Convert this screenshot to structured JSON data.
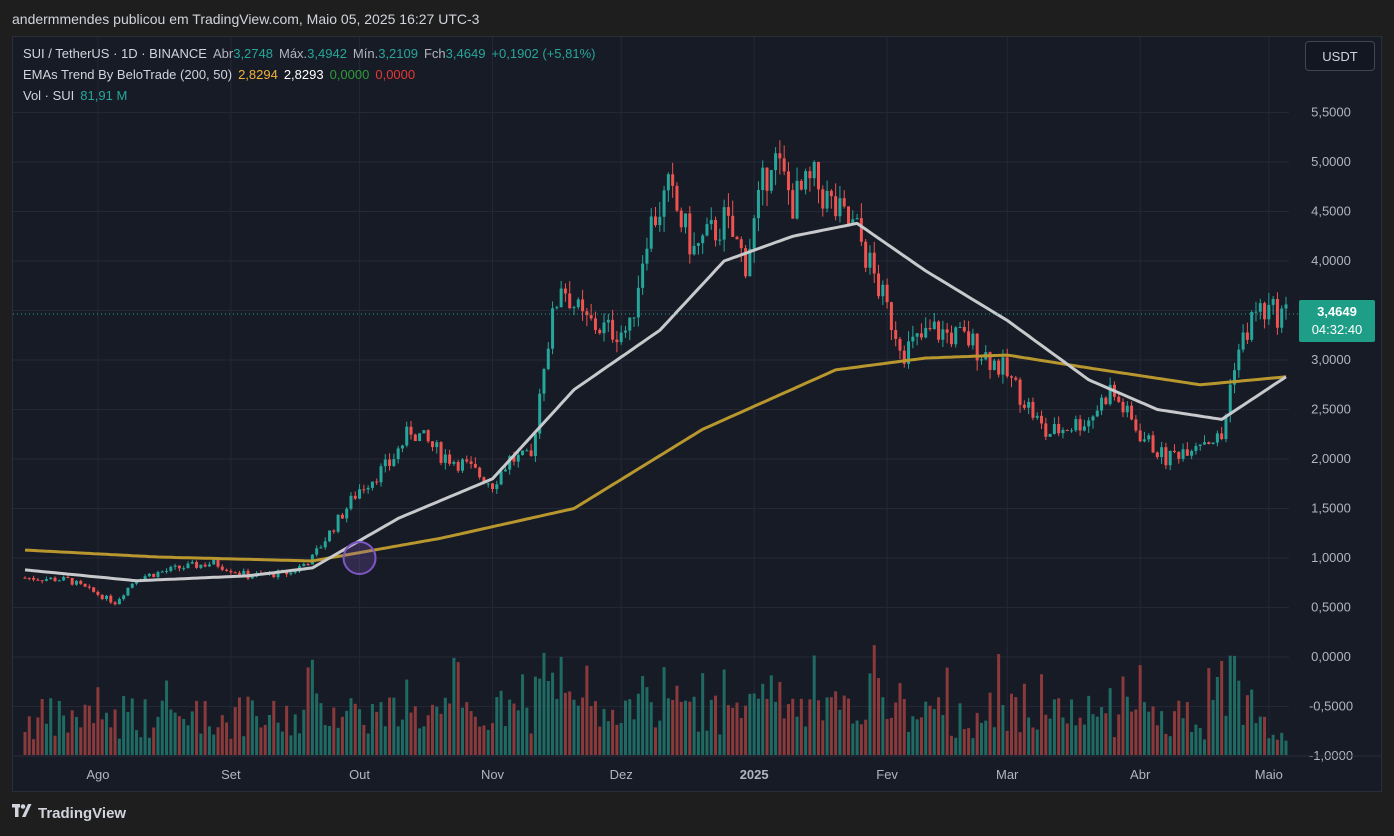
{
  "caption": "andermmendes publicou em TradingView.com, Maio 05, 2025 16:27 UTC-3",
  "legend": {
    "symbol": "SUI / TetherUS · 1D · BINANCE",
    "open_label": "Abr",
    "open": "3,2748",
    "high_label": "Máx.",
    "high": "3,4942",
    "low_label": "Mín.",
    "low": "3,2109",
    "close_label": "Fch",
    "close": "3,4649",
    "change": "+0,1902 (+5,81%)",
    "ema_name": "EMAs Trend By BeloTrade (200, 50)",
    "ema200": "2,8294",
    "ema50": "2,8293",
    "ema_v3": "0,0000",
    "ema_v4": "0,0000",
    "vol_label": "Vol · SUI",
    "vol_value": "81,91 M"
  },
  "currency_button": "USDT",
  "last_price_tag": {
    "price": "3,4649",
    "countdown": "04:32:40"
  },
  "footer": {
    "brand": "TradingView",
    "icon": "tradingview-logo-icon"
  },
  "colors": {
    "up": "#26a69a",
    "down": "#ef5350",
    "ema50": "#c8c9cc",
    "ema200": "#b8972e",
    "vol_up": "#1f6b63",
    "vol_down": "#8a3a3a",
    "background": "#171b26"
  },
  "chart_data": {
    "type": "candlestick",
    "title": "SUI / TetherUS · 1D · BINANCE",
    "xlabel": "",
    "ylabel": "",
    "y_ticks": [
      "5,5000",
      "5,0000",
      "4,5000",
      "4,0000",
      "3,5000",
      "3,0000",
      "2,5000",
      "2,0000",
      "1,5000",
      "1,0000",
      "0,5000",
      "0,0000",
      "-0,5000",
      "-1,0000"
    ],
    "y_tick_values": [
      5.5,
      5.0,
      4.5,
      4.0,
      3.5,
      3.0,
      2.5,
      2.0,
      1.5,
      1.0,
      0.5,
      0.0,
      -0.5,
      -1.0
    ],
    "x_ticks": [
      "Ago",
      "Set",
      "Out",
      "Nov",
      "Dez",
      "2025",
      "Fev",
      "Mar",
      "Abr",
      "Maio"
    ],
    "x_tick_dates": [
      "2024-08-01",
      "2024-09-01",
      "2024-10-01",
      "2024-11-01",
      "2024-12-01",
      "2025-01-01",
      "2025-02-01",
      "2025-03-01",
      "2025-04-01",
      "2025-05-01"
    ],
    "ylim": [
      -1.0,
      5.9
    ],
    "grid": true,
    "start_date": "2024-07-15",
    "end_date": "2025-05-05",
    "close_anchors": [
      [
        "2024-07-15",
        0.8
      ],
      [
        "2024-07-25",
        0.78
      ],
      [
        "2024-08-05",
        0.55
      ],
      [
        "2024-08-10",
        0.8
      ],
      [
        "2024-08-20",
        0.9
      ],
      [
        "2024-08-28",
        0.95
      ],
      [
        "2024-09-05",
        0.82
      ],
      [
        "2024-09-15",
        0.85
      ],
      [
        "2024-09-20",
        1.0
      ],
      [
        "2024-10-01",
        1.7
      ],
      [
        "2024-10-08",
        1.95
      ],
      [
        "2024-10-13",
        2.3
      ],
      [
        "2024-10-20",
        2.05
      ],
      [
        "2024-10-25",
        1.95
      ],
      [
        "2024-11-01",
        1.75
      ],
      [
        "2024-11-05",
        2.0
      ],
      [
        "2024-11-10",
        2.0
      ],
      [
        "2024-11-13",
        3.0
      ],
      [
        "2024-11-17",
        3.8
      ],
      [
        "2024-11-22",
        3.4
      ],
      [
        "2024-11-28",
        3.3
      ],
      [
        "2024-12-03",
        3.3
      ],
      [
        "2024-12-07",
        4.3
      ],
      [
        "2024-12-12",
        4.7
      ],
      [
        "2024-12-18",
        4.1
      ],
      [
        "2024-12-25",
        4.4
      ],
      [
        "2024-12-30",
        4.0
      ],
      [
        "2025-01-05",
        5.1
      ],
      [
        "2025-01-10",
        4.6
      ],
      [
        "2025-01-15",
        4.8
      ],
      [
        "2025-01-20",
        4.5
      ],
      [
        "2025-01-25",
        4.3
      ],
      [
        "2025-02-01",
        3.5
      ],
      [
        "2025-02-05",
        3.1
      ],
      [
        "2025-02-12",
        3.3
      ],
      [
        "2025-02-20",
        3.2
      ],
      [
        "2025-02-28",
        2.9
      ],
      [
        "2025-03-05",
        2.6
      ],
      [
        "2025-03-10",
        2.25
      ],
      [
        "2025-03-20",
        2.4
      ],
      [
        "2025-03-25",
        2.7
      ],
      [
        "2025-04-01",
        2.25
      ],
      [
        "2025-04-07",
        2.0
      ],
      [
        "2025-04-15",
        2.2
      ],
      [
        "2025-04-20",
        2.2
      ],
      [
        "2025-04-23",
        3.0
      ],
      [
        "2025-04-28",
        3.5
      ],
      [
        "2025-05-05",
        3.46
      ]
    ],
    "ema50_anchors": [
      [
        "2024-07-15",
        0.88
      ],
      [
        "2024-08-10",
        0.77
      ],
      [
        "2024-09-05",
        0.82
      ],
      [
        "2024-09-20",
        0.9
      ],
      [
        "2024-10-10",
        1.4
      ],
      [
        "2024-11-01",
        1.8
      ],
      [
        "2024-11-20",
        2.7
      ],
      [
        "2024-12-10",
        3.3
      ],
      [
        "2024-12-25",
        4.0
      ],
      [
        "2025-01-10",
        4.25
      ],
      [
        "2025-01-25",
        4.38
      ],
      [
        "2025-02-10",
        3.9
      ],
      [
        "2025-03-01",
        3.4
      ],
      [
        "2025-03-20",
        2.8
      ],
      [
        "2025-04-05",
        2.5
      ],
      [
        "2025-04-20",
        2.4
      ],
      [
        "2025-05-05",
        2.83
      ]
    ],
    "ema200_anchors": [
      [
        "2024-07-15",
        1.08
      ],
      [
        "2024-08-15",
        1.01
      ],
      [
        "2024-09-20",
        0.97
      ],
      [
        "2024-10-20",
        1.2
      ],
      [
        "2024-11-20",
        1.5
      ],
      [
        "2024-12-20",
        2.3
      ],
      [
        "2025-01-20",
        2.9
      ],
      [
        "2025-02-10",
        3.02
      ],
      [
        "2025-03-01",
        3.05
      ],
      [
        "2025-03-20",
        2.92
      ],
      [
        "2025-04-15",
        2.75
      ],
      [
        "2025-05-05",
        2.83
      ]
    ],
    "volume_note": "Volume histogram bars are scaled to the panel, one bar per candle",
    "annotations": [
      {
        "type": "circle",
        "date": "2024-10-01",
        "value": 1.0,
        "color": "#7e57c2"
      }
    ]
  }
}
